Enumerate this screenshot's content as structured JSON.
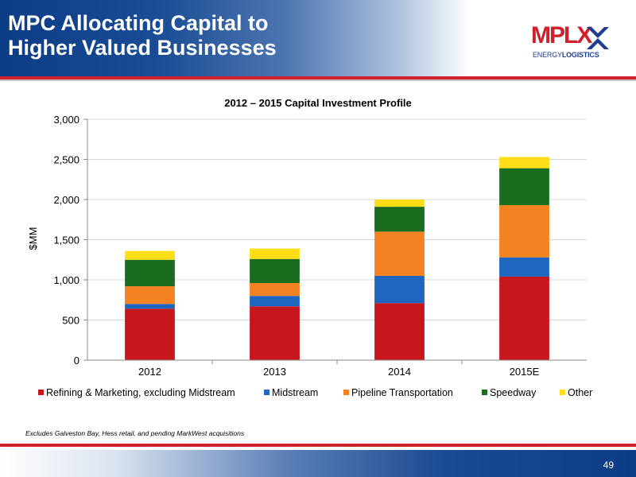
{
  "header": {
    "title_line1": "MPC Allocating Capital to",
    "title_line2": "Higher Valued Businesses",
    "logo_text": "MPLX",
    "logo_tagline_a": "ENERGY",
    "logo_tagline_b": "LOGISTICS"
  },
  "footnote": "Excludes Galveston Bay, Hess retail, and pending MarkWest acquisitions",
  "page_number": "49",
  "colors": {
    "brand_blue": "#0c3c86",
    "brand_red": "#d0202c"
  },
  "chart_data": {
    "type": "bar",
    "stacked": true,
    "title": "2012 – 2015 Capital Investment Profile",
    "xlabel": "",
    "ylabel": "$MM",
    "ylim": [
      0,
      3000
    ],
    "yticks": [
      0,
      500,
      1000,
      1500,
      2000,
      2500,
      3000
    ],
    "ytick_labels": [
      "0",
      "500",
      "1,000",
      "1,500",
      "2,000",
      "2,500",
      "3,000"
    ],
    "grid": true,
    "legend_position": "bottom",
    "categories": [
      "2012",
      "2013",
      "2014",
      "2015E"
    ],
    "series": [
      {
        "name": "Refining & Marketing, excluding Midstream",
        "color": "#c8161d",
        "values": [
          640,
          670,
          710,
          1040
        ]
      },
      {
        "name": "Midstream",
        "color": "#1f66c1",
        "values": [
          60,
          130,
          340,
          240
        ]
      },
      {
        "name": "Pipeline Transportation",
        "color": "#f58220",
        "values": [
          220,
          160,
          550,
          650
        ]
      },
      {
        "name": "Speedway",
        "color": "#1a6d1f",
        "values": [
          330,
          300,
          310,
          460
        ]
      },
      {
        "name": "Other",
        "color": "#ffde17",
        "values": [
          110,
          130,
          90,
          140
        ]
      }
    ]
  }
}
